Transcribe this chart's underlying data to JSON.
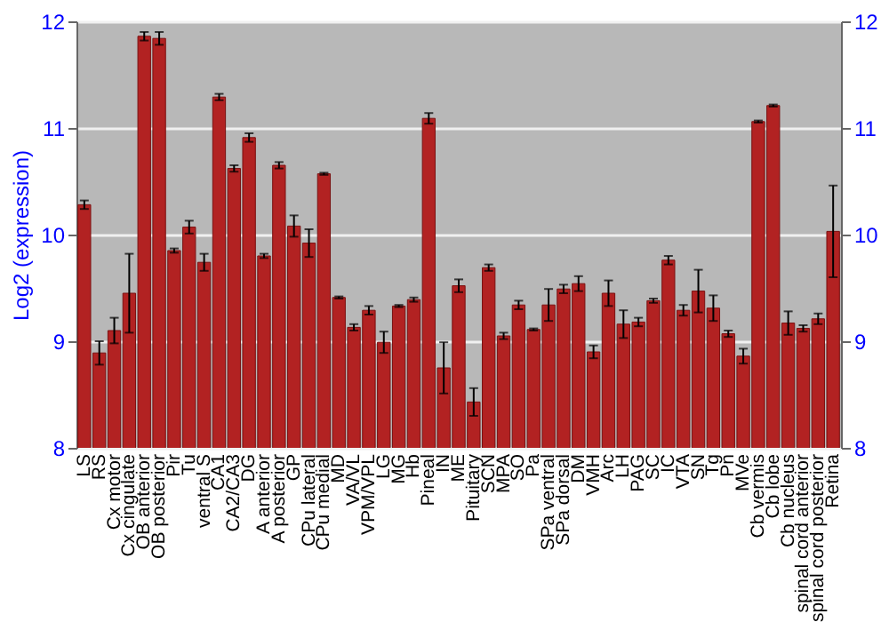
{
  "chart_data": {
    "type": "bar",
    "ylabel": "Log2 (expression)",
    "categories": [
      "LS",
      "RS",
      "Cx motor",
      "Cx cingulate",
      "OB anterior",
      "OB posterior",
      "Pir",
      "Tu",
      "ventral S",
      "CA1",
      "CA2/CA3",
      "DG",
      "A anterior",
      "A posterior",
      "GP",
      "CPu lateral",
      "CPu medial",
      "MD",
      "VA/VL",
      "VPM/VPL",
      "LG",
      "MG",
      "Hb",
      "Pineal",
      "IN",
      "ME",
      "Pituitary",
      "SCN",
      "MPA",
      "SO",
      "Pa",
      "SPa ventral",
      "SPa dorsal",
      "DM",
      "VMH",
      "Arc",
      "LH",
      "PAG",
      "SC",
      "IC",
      "VTA",
      "SN",
      "Tg",
      "Pn",
      "MVe",
      "Cb vermis",
      "Cb lobe",
      "Cb nucleus",
      "spinal cord anterior",
      "spinal cord posterior",
      "Retina"
    ],
    "values": [
      10.28,
      8.89,
      9.1,
      9.45,
      11.86,
      11.84,
      9.85,
      10.07,
      9.74,
      11.29,
      10.62,
      10.91,
      9.8,
      10.65,
      10.08,
      9.92,
      10.57,
      9.41,
      9.13,
      9.29,
      8.99,
      9.33,
      9.39,
      11.09,
      8.75,
      9.52,
      8.43,
      9.69,
      9.05,
      9.34,
      9.11,
      9.34,
      9.49,
      9.54,
      8.9,
      9.45,
      9.16,
      9.18,
      9.38,
      9.76,
      9.29,
      9.47,
      9.31,
      9.07,
      8.86,
      11.06,
      11.21,
      9.17,
      9.12,
      9.21,
      10.03
    ],
    "errors": [
      0.04,
      0.11,
      0.12,
      0.37,
      0.04,
      0.06,
      0.02,
      0.06,
      0.08,
      0.03,
      0.03,
      0.04,
      0.02,
      0.03,
      0.1,
      0.13,
      0.01,
      0.01,
      0.03,
      0.04,
      0.1,
      0.01,
      0.02,
      0.05,
      0.24,
      0.06,
      0.13,
      0.03,
      0.03,
      0.04,
      0.01,
      0.15,
      0.04,
      0.07,
      0.06,
      0.12,
      0.13,
      0.04,
      0.02,
      0.04,
      0.05,
      0.2,
      0.12,
      0.03,
      0.07,
      0.01,
      0.01,
      0.11,
      0.03,
      0.05,
      0.43
    ],
    "color": "#b22222",
    "ylim": [
      8,
      12
    ],
    "yticks": [
      8,
      9,
      10,
      11,
      12
    ],
    "y2lim": [
      8,
      12
    ],
    "y2ticks": [
      8,
      9,
      10,
      11,
      12
    ],
    "grid": "y"
  }
}
